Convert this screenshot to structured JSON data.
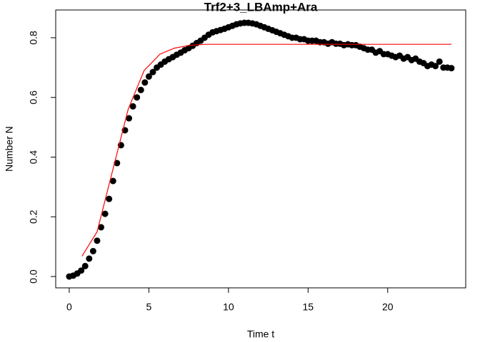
{
  "chart_data": {
    "type": "scatter",
    "title": "Trf2+3_LBAmp+Ara",
    "x_label": "Time t",
    "y_label": "Number N",
    "xlim": [
      -0.85,
      24.9
    ],
    "ylim": [
      -0.038,
      0.893
    ],
    "xticks": [
      0,
      5,
      10,
      15,
      20
    ],
    "yticks": [
      {
        "value": 0,
        "label": "0.0"
      },
      {
        "value": 0.2,
        "label": "0.2"
      },
      {
        "value": 0.4,
        "label": "0.4"
      },
      {
        "value": 0.6,
        "label": "0.6"
      },
      {
        "value": 0.8,
        "label": "0.8"
      }
    ],
    "series": [
      {
        "mode": "points",
        "color": "#000000",
        "x": [
          0,
          0.25,
          0.5,
          0.75,
          1,
          1.25,
          1.5,
          1.75,
          2,
          2.25,
          2.5,
          2.75,
          3,
          3.25,
          3.5,
          3.75,
          4,
          4.25,
          4.5,
          4.75,
          5,
          5.25,
          5.5,
          5.75,
          6,
          6.25,
          6.5,
          6.75,
          7,
          7.25,
          7.5,
          7.75,
          8,
          8.25,
          8.5,
          8.75,
          9,
          9.25,
          9.5,
          9.75,
          10,
          10.25,
          10.5,
          10.75,
          11,
          11.25,
          11.5,
          11.75,
          12,
          12.25,
          12.5,
          12.75,
          13,
          13.25,
          13.5,
          13.75,
          14,
          14.25,
          14.5,
          14.75,
          15,
          15.25,
          15.5,
          15.75,
          16,
          16.25,
          16.5,
          16.75,
          17,
          17.25,
          17.5,
          17.75,
          18,
          18.25,
          18.5,
          18.75,
          19,
          19.25,
          19.5,
          19.75,
          20,
          20.25,
          20.5,
          20.75,
          21,
          21.25,
          21.5,
          21.75,
          22,
          22.25,
          22.5,
          22.75,
          23,
          23.25,
          23.5,
          23.75,
          24
        ],
        "values": [
          0,
          0.003,
          0.01,
          0.02,
          0.035,
          0.06,
          0.085,
          0.12,
          0.165,
          0.21,
          0.26,
          0.32,
          0.38,
          0.44,
          0.49,
          0.53,
          0.57,
          0.6,
          0.625,
          0.65,
          0.67,
          0.685,
          0.7,
          0.71,
          0.72,
          0.728,
          0.735,
          0.743,
          0.75,
          0.758,
          0.765,
          0.773,
          0.782,
          0.79,
          0.8,
          0.81,
          0.818,
          0.822,
          0.826,
          0.83,
          0.835,
          0.84,
          0.845,
          0.848,
          0.85,
          0.85,
          0.848,
          0.845,
          0.84,
          0.835,
          0.83,
          0.825,
          0.82,
          0.815,
          0.81,
          0.805,
          0.8,
          0.8,
          0.795,
          0.795,
          0.79,
          0.79,
          0.79,
          0.785,
          0.785,
          0.78,
          0.785,
          0.78,
          0.78,
          0.775,
          0.778,
          0.775,
          0.775,
          0.77,
          0.765,
          0.76,
          0.76,
          0.75,
          0.755,
          0.745,
          0.745,
          0.74,
          0.735,
          0.74,
          0.73,
          0.735,
          0.725,
          0.73,
          0.72,
          0.715,
          0.705,
          0.71,
          0.705,
          0.72,
          0.7,
          0.7,
          0.698
        ]
      },
      {
        "mode": "line",
        "color": "#ff0000",
        "x": [
          0.8,
          1.75,
          2.7,
          3.7,
          4.7,
          5.7,
          6.6,
          7.6,
          8.6,
          24
        ],
        "values": [
          0.068,
          0.15,
          0.35,
          0.56,
          0.69,
          0.745,
          0.765,
          0.775,
          0.778,
          0.778
        ]
      }
    ]
  }
}
